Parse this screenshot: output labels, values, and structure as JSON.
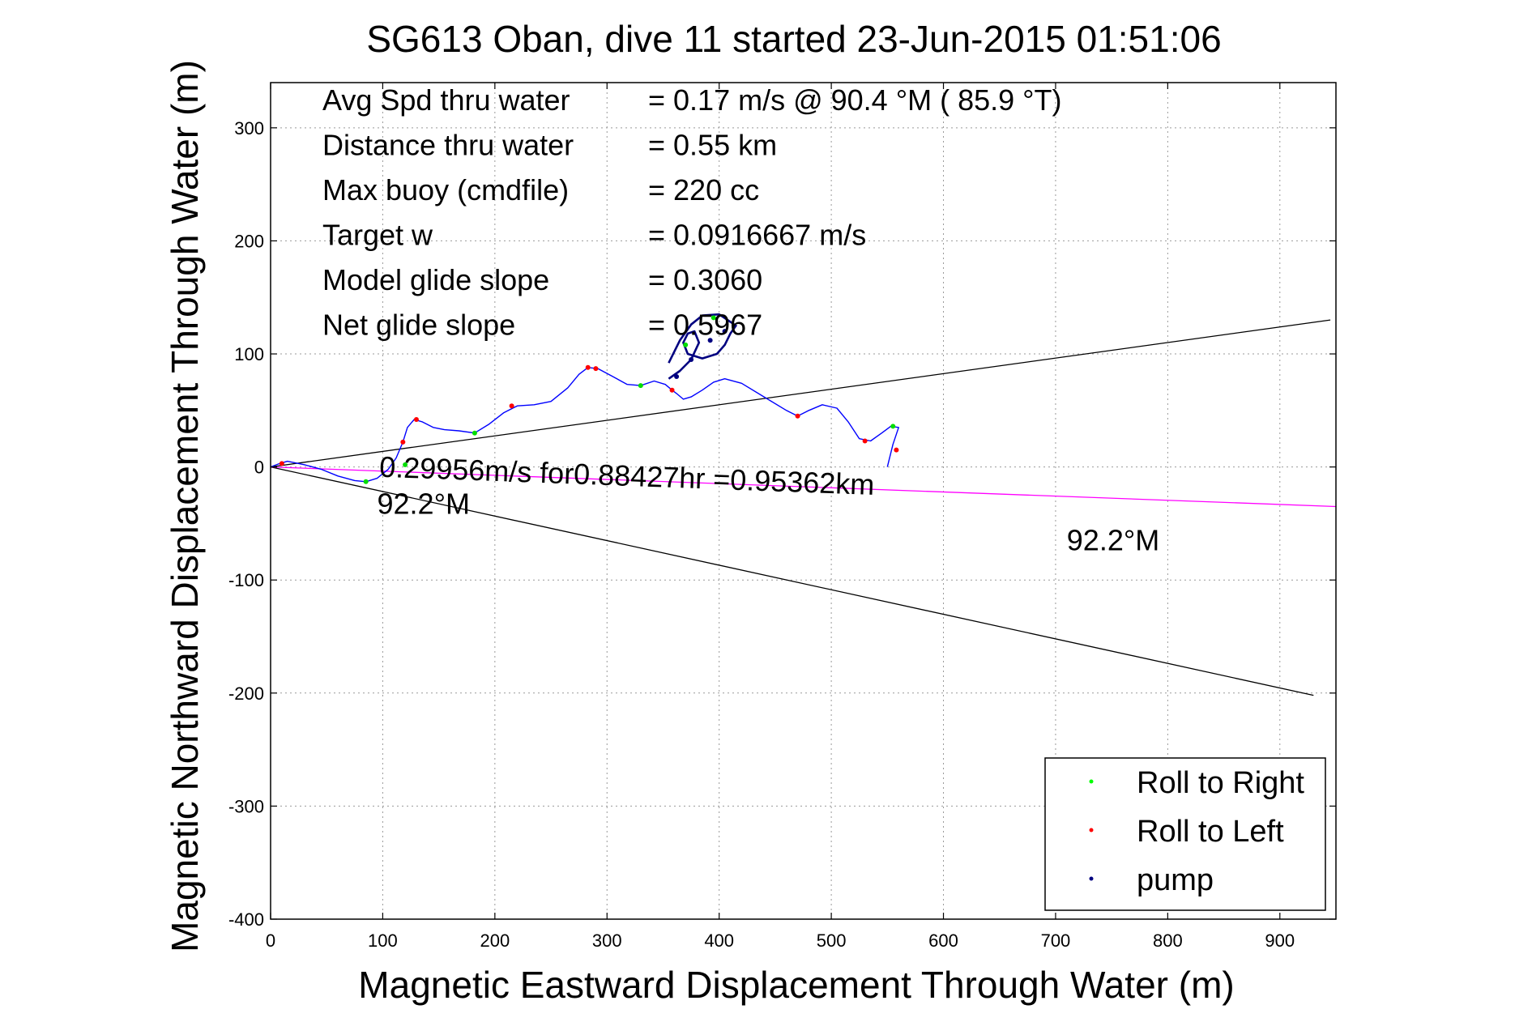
{
  "chart_data": {
    "type": "line",
    "title": "SG613 Oban, dive 11 started 23-Jun-2015 01:51:06",
    "xlabel": "Magnetic Eastward Displacement Through Water (m)",
    "ylabel": "Magnetic Northward Displacement Through Water (m)",
    "xlim": [
      0,
      950
    ],
    "ylim": [
      -400,
      340
    ],
    "x_ticks": [
      0,
      100,
      200,
      300,
      400,
      500,
      600,
      700,
      800,
      900
    ],
    "y_ticks": [
      -400,
      -300,
      -200,
      -100,
      0,
      100,
      200,
      300
    ],
    "grid": true,
    "stats": [
      {
        "label": "Avg Spd thru water",
        "value": "=  0.17 m/s @  90.4 °M ( 85.9 °T)"
      },
      {
        "label": "Distance thru water",
        "value": "=  0.55 km"
      },
      {
        "label": "Max buoy (cmdfile)",
        "value": "= 220 cc"
      },
      {
        "label": "Target w",
        "value": "= 0.0916667 m/s"
      },
      {
        "label": "Model glide slope",
        "value": "= 0.3060"
      },
      {
        "label": "Net glide slope",
        "value": "= 0.5967"
      }
    ],
    "annotations": [
      {
        "text": "0.29956m/s for0.88427hr =0.95362km",
        "x": 97,
        "y": 0
      },
      {
        "text": "92.2°M",
        "x": 95,
        "y": -33
      },
      {
        "text": "92.2°M",
        "x": 710,
        "y": -65
      }
    ],
    "reference_lines": [
      {
        "name": "upper bound",
        "color": "#000000",
        "x": [
          0,
          945
        ],
        "y": [
          0,
          130
        ]
      },
      {
        "name": "lower bound",
        "color": "#000000",
        "x": [
          0,
          930
        ],
        "y": [
          0,
          -202
        ]
      },
      {
        "name": "heading 92.2°M",
        "color": "#ff00ff",
        "x": [
          0,
          950
        ],
        "y": [
          0,
          -35
        ]
      }
    ],
    "track": {
      "color": "#0000ff",
      "x": [
        0,
        8,
        15,
        30,
        45,
        60,
        75,
        85,
        95,
        105,
        112,
        118,
        122,
        128,
        135,
        145,
        155,
        168,
        182,
        195,
        208,
        220,
        235,
        250,
        265,
        275,
        283,
        292,
        305,
        318,
        330,
        342,
        352,
        358,
        362,
        368,
        375,
        385,
        395,
        405,
        420,
        440,
        460,
        470,
        480,
        492,
        505,
        515,
        525,
        535,
        545,
        553,
        560,
        555,
        550
      ],
      "y": [
        0,
        3,
        5,
        2,
        -2,
        -8,
        -12,
        -13,
        -10,
        -2,
        8,
        22,
        35,
        42,
        40,
        35,
        33,
        32,
        30,
        38,
        48,
        54,
        55,
        58,
        70,
        82,
        88,
        87,
        80,
        73,
        72,
        76,
        73,
        68,
        65,
        60,
        62,
        68,
        75,
        78,
        74,
        62,
        50,
        45,
        50,
        55,
        52,
        40,
        25,
        23,
        30,
        36,
        35,
        20,
        0
      ]
    },
    "loop_track": {
      "color": "#000080",
      "x": [
        355,
        365,
        375,
        382,
        378,
        372,
        368,
        372,
        385,
        398,
        405,
        410,
        415,
        400,
        385,
        375,
        365,
        355
      ],
      "y": [
        78,
        85,
        95,
        110,
        120,
        118,
        110,
        100,
        96,
        100,
        108,
        118,
        125,
        135,
        134,
        126,
        112,
        92
      ]
    },
    "markers": {
      "roll_right": [
        [
          85,
          -13
        ],
        [
          120,
          2
        ],
        [
          182,
          30
        ],
        [
          330,
          72
        ],
        [
          370,
          108
        ],
        [
          395,
          132
        ],
        [
          555,
          36
        ]
      ],
      "roll_left": [
        [
          10,
          3
        ],
        [
          118,
          22
        ],
        [
          130,
          42
        ],
        [
          215,
          54
        ],
        [
          283,
          88
        ],
        [
          290,
          87
        ],
        [
          358,
          68
        ],
        [
          470,
          45
        ],
        [
          530,
          23
        ],
        [
          558,
          15
        ]
      ],
      "pump": [
        [
          375,
          95
        ],
        [
          392,
          112
        ],
        [
          405,
          120
        ],
        [
          362,
          80
        ]
      ]
    },
    "legend": {
      "placement": "bottom-right",
      "entries": [
        {
          "label": "Roll to Right",
          "color": "#00ff00"
        },
        {
          "label": "Roll to Left",
          "color": "#ff0000"
        },
        {
          "label": "pump",
          "color": "#000080"
        }
      ]
    }
  }
}
